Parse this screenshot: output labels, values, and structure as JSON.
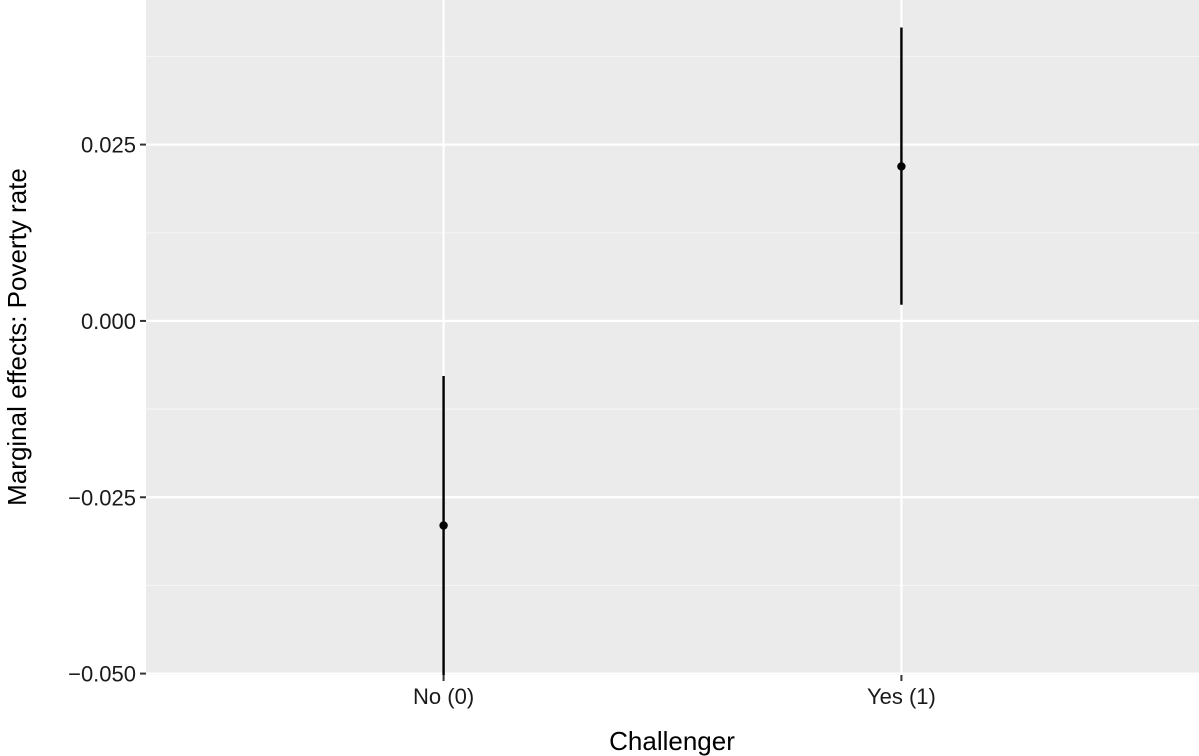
{
  "chart_data": {
    "type": "scatter",
    "title": "",
    "xlabel": "Challenger",
    "ylabel": "Marginal effects: Poverty rate",
    "categories": [
      "No (0)",
      "Yes (1)"
    ],
    "estimates": [
      -0.029,
      0.0219
    ],
    "lower": [
      -0.0502,
      0.0023
    ],
    "upper": [
      -0.0078,
      0.0416
    ],
    "ylim": [
      -0.0502,
      0.0455
    ],
    "yticks": [
      -0.05,
      -0.025,
      0,
      0.025
    ],
    "ytick_labels": [
      "−0.050",
      "−0.025",
      "0.000",
      "0.025"
    ],
    "grid": true,
    "legend": "none",
    "colors": {
      "panel": "#ebebeb",
      "grid": "#ffffff",
      "marks": "#000000"
    }
  }
}
